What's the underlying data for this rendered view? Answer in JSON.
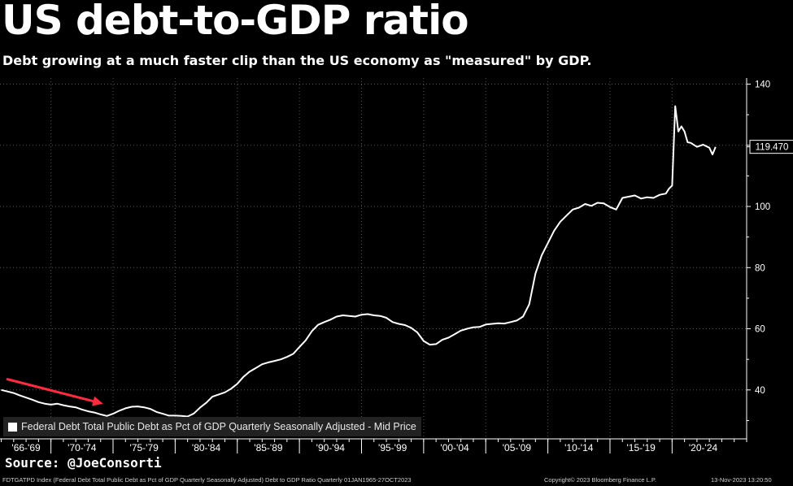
{
  "title": "US debt-to-GDP ratio",
  "subtitle": "Debt growing at a much faster clip than the US economy as \"measured\" by GDP.",
  "source": "Source: @JoeConsorti",
  "footer": {
    "left": "FDTGATPD Index (Federal Debt Total Public Debt as Pct of GDP Quarterly Seasonally Adjusted) Debt to GDP Ratio  Quarterly 01JAN1965-27OCT2023",
    "middle": "Copyright© 2023 Bloomberg Finance L.P.",
    "right": "13-Nov-2023 13:20:50"
  },
  "colors": {
    "background": "#000000",
    "line": "#ffffff",
    "arrow": "#ff2a40",
    "grid": "#555555"
  },
  "chart_data": {
    "type": "line",
    "xlim": [
      1965.9,
      2026.0
    ],
    "ylim": [
      24,
      142
    ],
    "y_ticks": [
      40,
      60,
      80,
      100,
      120,
      140
    ],
    "x_tick_labels": [
      "'66-'69",
      "'70-'74",
      "'75-'79",
      "'80-'84",
      "'85-'89",
      "'90-'94",
      "'95-'99",
      "'00-'04",
      "'05-'09",
      "'10-'14",
      "'15-'19",
      "'20-'24"
    ],
    "x_tick_spans": [
      [
        1966,
        1970
      ],
      [
        1970,
        1975
      ],
      [
        1975,
        1980
      ],
      [
        1980,
        1985
      ],
      [
        1985,
        1990
      ],
      [
        1990,
        1995
      ],
      [
        1995,
        2000
      ],
      [
        2000,
        2005
      ],
      [
        2005,
        2010
      ],
      [
        2010,
        2015
      ],
      [
        2015,
        2020
      ],
      [
        2020,
        2025
      ]
    ],
    "last_value_label": "119.470",
    "grid": true,
    "y_axis_side": "right",
    "legend": {
      "position": "bottom-left",
      "entries": [
        "Federal Debt Total Public Debt as Pct of GDP Quarterly Seasonally Adjusted - Mid Price"
      ]
    },
    "annotation": {
      "type": "arrow",
      "from": [
        1966.5,
        43.5
      ],
      "to": [
        1974.2,
        35.5
      ]
    },
    "series": [
      {
        "x": [
          1966.0,
          1966.5,
          1967.0,
          1967.5,
          1968.0,
          1968.5,
          1969.0,
          1969.5,
          1970.0,
          1970.5,
          1971.0,
          1971.5,
          1972.0,
          1972.5,
          1973.0,
          1973.5,
          1974.0,
          1974.5,
          1975.0,
          1975.5,
          1976.0,
          1976.5,
          1977.0,
          1977.5,
          1978.0,
          1978.5,
          1979.0,
          1979.5,
          1980.0,
          1980.5,
          1981.0,
          1981.5,
          1982.0,
          1982.5,
          1983.0,
          1983.5,
          1984.0,
          1984.5,
          1985.0,
          1985.5,
          1986.0,
          1986.5,
          1987.0,
          1987.5,
          1988.0,
          1988.5,
          1989.0,
          1989.5,
          1990.0,
          1990.5,
          1991.0,
          1991.5,
          1992.0,
          1992.5,
          1993.0,
          1993.5,
          1994.0,
          1994.5,
          1995.0,
          1995.5,
          1996.0,
          1996.5,
          1997.0,
          1997.5,
          1998.0,
          1998.5,
          1999.0,
          1999.5,
          2000.0,
          2000.5,
          2001.0,
          2001.5,
          2002.0,
          2002.5,
          2003.0,
          2003.5,
          2004.0,
          2004.5,
          2005.0,
          2005.5,
          2006.0,
          2006.5,
          2007.0,
          2007.5,
          2008.0,
          2008.5,
          2009.0,
          2009.5,
          2010.0,
          2010.5,
          2011.0,
          2011.5,
          2012.0,
          2012.5,
          2013.0,
          2013.5,
          2014.0,
          2014.5,
          2015.0,
          2015.5,
          2016.0,
          2016.5,
          2017.0,
          2017.5,
          2018.0,
          2018.5,
          2019.0,
          2019.5,
          2019.75,
          2020.0,
          2020.25,
          2020.5,
          2020.75,
          2021.0,
          2021.25,
          2021.5,
          2022.0,
          2022.5,
          2023.0,
          2023.25,
          2023.5
        ],
        "values": [
          40.0,
          39.5,
          39.0,
          38.2,
          37.5,
          36.8,
          36.0,
          35.5,
          35.2,
          35.5,
          35.0,
          34.6,
          34.3,
          33.6,
          33.0,
          32.6,
          32.0,
          31.5,
          32.2,
          33.2,
          34.0,
          34.5,
          34.6,
          34.3,
          33.8,
          32.8,
          32.2,
          31.6,
          31.6,
          31.5,
          31.3,
          32.3,
          34.2,
          35.8,
          37.8,
          38.5,
          39.2,
          40.4,
          42.0,
          44.3,
          46.0,
          47.2,
          48.4,
          49.0,
          49.5,
          50.0,
          50.8,
          51.8,
          54.0,
          56.2,
          59.2,
          61.3,
          62.2,
          63.0,
          64.0,
          64.4,
          64.2,
          64.0,
          64.6,
          64.8,
          64.4,
          64.2,
          63.6,
          62.2,
          61.6,
          61.2,
          60.3,
          58.8,
          56.0,
          54.8,
          55.0,
          56.4,
          57.1,
          58.2,
          59.4,
          60.0,
          60.5,
          60.6,
          61.4,
          61.6,
          61.8,
          61.7,
          62.2,
          62.7,
          64.0,
          68.0,
          78.0,
          84.0,
          88.0,
          92.0,
          95.0,
          97.0,
          99.0,
          99.6,
          100.8,
          100.2,
          101.2,
          101.0,
          99.8,
          99.0,
          102.8,
          103.2,
          103.6,
          102.6,
          103.0,
          102.8,
          103.8,
          104.2,
          105.8,
          106.8,
          132.8,
          124.5,
          126.2,
          124.5,
          121.0,
          120.8,
          119.5,
          120.2,
          119.2,
          117.0,
          119.5
        ]
      }
    ]
  }
}
